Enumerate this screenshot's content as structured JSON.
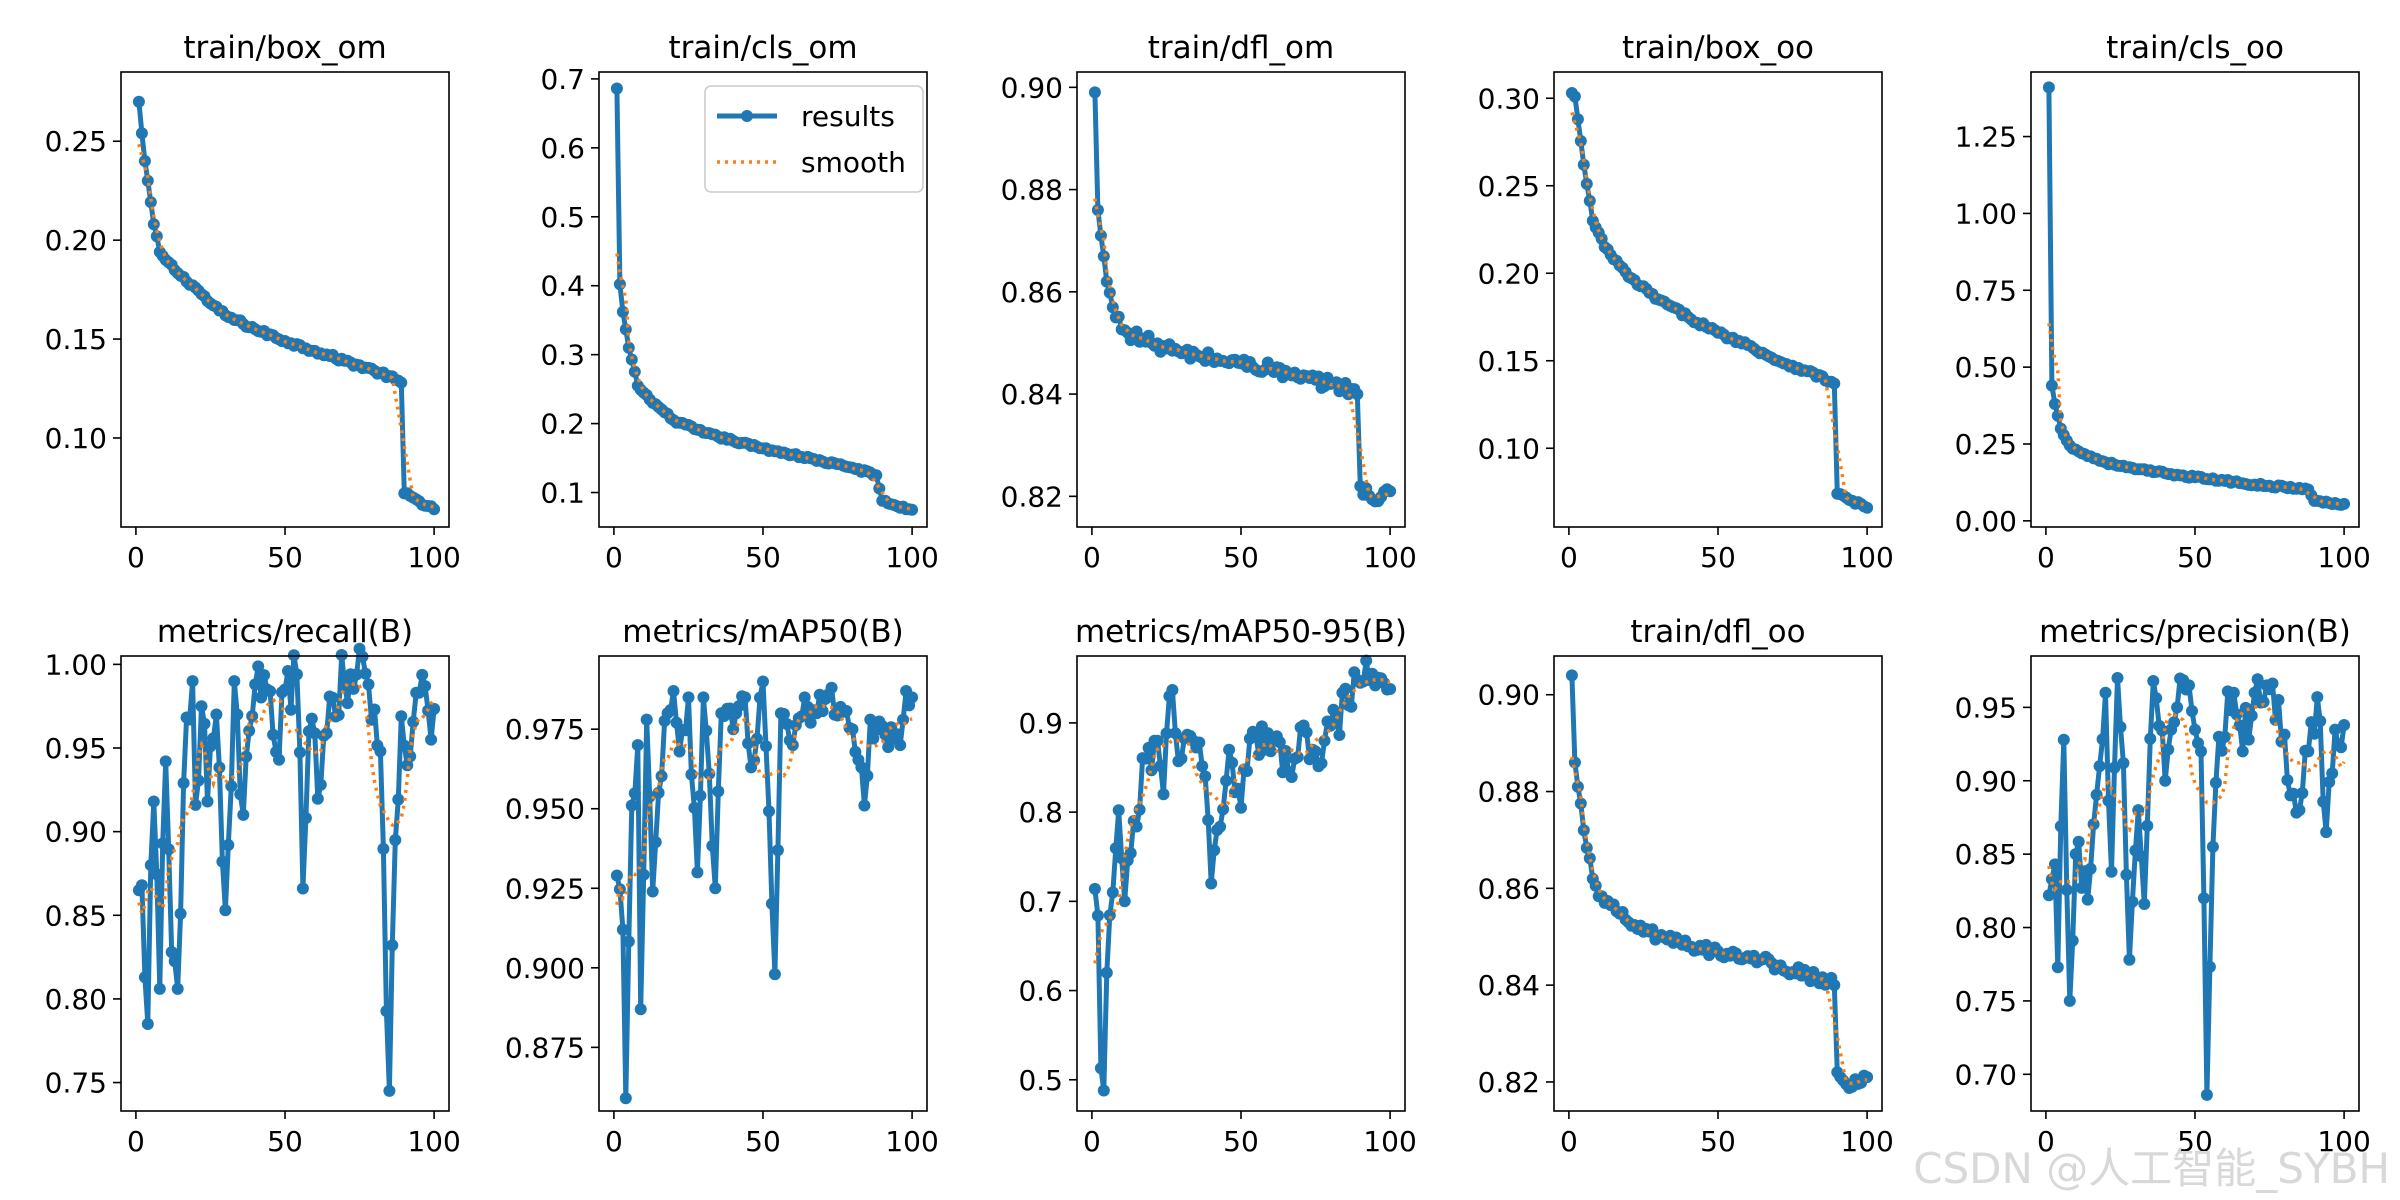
{
  "colors": {
    "results": "#1f77b4",
    "smooth": "#ff7f0e",
    "axis": "#000000"
  },
  "legend": {
    "results_label": "results",
    "smooth_label": "smooth"
  },
  "watermark": "CSDN @人工智能_SYBH",
  "chart_data": [
    {
      "type": "line",
      "title": "train/box_om",
      "xlim": [
        -5,
        105
      ],
      "ylim": [
        0.055,
        0.285
      ],
      "xticks": [
        0,
        50,
        100
      ],
      "yticks": [
        0.1,
        0.15,
        0.2,
        0.25
      ],
      "ytick_labels": [
        "0.10",
        "0.15",
        "0.20",
        "0.25"
      ],
      "anchors": [
        [
          1,
          0.27
        ],
        [
          2,
          0.254
        ],
        [
          3,
          0.24
        ],
        [
          4,
          0.23
        ],
        [
          6,
          0.208
        ],
        [
          8,
          0.194
        ],
        [
          10,
          0.19
        ],
        [
          15,
          0.182
        ],
        [
          20,
          0.176
        ],
        [
          25,
          0.168
        ],
        [
          30,
          0.162
        ],
        [
          40,
          0.155
        ],
        [
          50,
          0.149
        ],
        [
          60,
          0.144
        ],
        [
          70,
          0.139
        ],
        [
          80,
          0.134
        ],
        [
          88,
          0.129
        ],
        [
          89,
          0.128
        ],
        [
          90,
          0.072
        ],
        [
          95,
          0.068
        ],
        [
          100,
          0.064
        ]
      ],
      "jitter": 0.001
    },
    {
      "type": "line",
      "title": "train/cls_om",
      "legend": true,
      "xlim": [
        -5,
        105
      ],
      "ylim": [
        0.05,
        0.71
      ],
      "xticks": [
        0,
        50,
        100
      ],
      "yticks": [
        0.1,
        0.2,
        0.3,
        0.4,
        0.5,
        0.6,
        0.7
      ],
      "ytick_labels": [
        "0.1",
        "0.2",
        "0.3",
        "0.4",
        "0.5",
        "0.6",
        "0.7"
      ],
      "anchors": [
        [
          1,
          0.686
        ],
        [
          2,
          0.402
        ],
        [
          3,
          0.362
        ],
        [
          5,
          0.31
        ],
        [
          8,
          0.255
        ],
        [
          12,
          0.235
        ],
        [
          20,
          0.205
        ],
        [
          30,
          0.187
        ],
        [
          40,
          0.175
        ],
        [
          50,
          0.164
        ],
        [
          60,
          0.155
        ],
        [
          70,
          0.145
        ],
        [
          80,
          0.136
        ],
        [
          88,
          0.125
        ],
        [
          90,
          0.088
        ],
        [
          95,
          0.08
        ],
        [
          100,
          0.075
        ]
      ],
      "jitter": 0.002
    },
    {
      "type": "line",
      "title": "train/dfl_om",
      "xlim": [
        -5,
        105
      ],
      "ylim": [
        0.814,
        0.903
      ],
      "xticks": [
        0,
        50,
        100
      ],
      "yticks": [
        0.82,
        0.84,
        0.86,
        0.88,
        0.9
      ],
      "ytick_labels": [
        "0.82",
        "0.84",
        "0.86",
        "0.88",
        "0.90"
      ],
      "anchors": [
        [
          1,
          0.899
        ],
        [
          2,
          0.876
        ],
        [
          3,
          0.871
        ],
        [
          5,
          0.862
        ],
        [
          8,
          0.855
        ],
        [
          12,
          0.852
        ],
        [
          20,
          0.85
        ],
        [
          30,
          0.848
        ],
        [
          40,
          0.847
        ],
        [
          50,
          0.846
        ],
        [
          60,
          0.845
        ],
        [
          70,
          0.843
        ],
        [
          80,
          0.842
        ],
        [
          87,
          0.841
        ],
        [
          89,
          0.84
        ],
        [
          90,
          0.822
        ],
        [
          95,
          0.819
        ],
        [
          100,
          0.821
        ]
      ],
      "jitter": 0.0012
    },
    {
      "type": "line",
      "title": "train/box_oo",
      "xlim": [
        -5,
        105
      ],
      "ylim": [
        0.055,
        0.315
      ],
      "xticks": [
        0,
        50,
        100
      ],
      "yticks": [
        0.1,
        0.15,
        0.2,
        0.25,
        0.3
      ],
      "ytick_labels": [
        "0.10",
        "0.15",
        "0.20",
        "0.25",
        "0.30"
      ],
      "anchors": [
        [
          1,
          0.303
        ],
        [
          2,
          0.301
        ],
        [
          3,
          0.288
        ],
        [
          5,
          0.262
        ],
        [
          8,
          0.23
        ],
        [
          12,
          0.215
        ],
        [
          20,
          0.198
        ],
        [
          30,
          0.185
        ],
        [
          40,
          0.175
        ],
        [
          50,
          0.166
        ],
        [
          60,
          0.159
        ],
        [
          70,
          0.15
        ],
        [
          80,
          0.144
        ],
        [
          88,
          0.138
        ],
        [
          89,
          0.137
        ],
        [
          90,
          0.074
        ],
        [
          95,
          0.07
        ],
        [
          100,
          0.066
        ]
      ],
      "jitter": 0.0012
    },
    {
      "type": "line",
      "title": "train/cls_oo",
      "xlim": [
        -5,
        105
      ],
      "ylim": [
        -0.02,
        1.46
      ],
      "xticks": [
        0,
        50,
        100
      ],
      "yticks": [
        0.0,
        0.25,
        0.5,
        0.75,
        1.0,
        1.25
      ],
      "ytick_labels": [
        "0.00",
        "0.25",
        "0.50",
        "0.75",
        "1.00",
        "1.25"
      ],
      "anchors": [
        [
          1,
          1.41
        ],
        [
          2,
          0.44
        ],
        [
          3,
          0.38
        ],
        [
          5,
          0.3
        ],
        [
          8,
          0.245
        ],
        [
          12,
          0.22
        ],
        [
          20,
          0.19
        ],
        [
          30,
          0.168
        ],
        [
          40,
          0.155
        ],
        [
          50,
          0.142
        ],
        [
          60,
          0.13
        ],
        [
          70,
          0.118
        ],
        [
          80,
          0.11
        ],
        [
          88,
          0.102
        ],
        [
          90,
          0.065
        ],
        [
          95,
          0.058
        ],
        [
          100,
          0.055
        ]
      ],
      "jitter": 0.004
    },
    {
      "type": "line",
      "title": "metrics/recall(B)",
      "xlim": [
        -5,
        105
      ],
      "ylim": [
        0.733,
        1.005
      ],
      "xticks": [
        0,
        50,
        100
      ],
      "yticks": [
        0.75,
        0.8,
        0.85,
        0.9,
        0.95,
        1.0
      ],
      "ytick_labels": [
        "0.75",
        "0.80",
        "0.85",
        "0.90",
        "0.95",
        "1.00"
      ],
      "anchors": [
        [
          1,
          0.865
        ],
        [
          2,
          0.868
        ],
        [
          3,
          0.813
        ],
        [
          4,
          0.785
        ],
        [
          5,
          0.88
        ],
        [
          6,
          0.918
        ],
        [
          8,
          0.806
        ],
        [
          10,
          0.942
        ],
        [
          12,
          0.828
        ],
        [
          14,
          0.806
        ],
        [
          16,
          0.929
        ],
        [
          19,
          0.99
        ],
        [
          20,
          0.916
        ],
        [
          22,
          0.975
        ],
        [
          24,
          0.918
        ],
        [
          27,
          0.97
        ],
        [
          30,
          0.853
        ],
        [
          33,
          0.99
        ],
        [
          36,
          0.91
        ],
        [
          40,
          0.988
        ],
        [
          44,
          0.985
        ],
        [
          48,
          0.943
        ],
        [
          50,
          0.985
        ],
        [
          54,
          0.994
        ],
        [
          56,
          0.866
        ],
        [
          58,
          0.96
        ],
        [
          62,
          0.928
        ],
        [
          66,
          0.98
        ],
        [
          70,
          0.988
        ],
        [
          74,
          0.994
        ],
        [
          78,
          0.988
        ],
        [
          82,
          0.948
        ],
        [
          85,
          0.745
        ],
        [
          87,
          0.895
        ],
        [
          89,
          0.969
        ],
        [
          92,
          0.945
        ],
        [
          95,
          0.983
        ],
        [
          97,
          0.987
        ],
        [
          99,
          0.955
        ]
      ],
      "jitter": 0.02,
      "smooth_window": 6
    },
    {
      "type": "line",
      "title": "metrics/mAP50(B)",
      "xlim": [
        -5,
        105
      ],
      "ylim": [
        0.855,
        0.998
      ],
      "xticks": [
        0,
        50,
        100
      ],
      "yticks": [
        0.875,
        0.9,
        0.925,
        0.95,
        0.975
      ],
      "ytick_labels": [
        "0.875",
        "0.900",
        "0.925",
        "0.950",
        "0.975"
      ],
      "anchors": [
        [
          1,
          0.929
        ],
        [
          3,
          0.912
        ],
        [
          4,
          0.859
        ],
        [
          6,
          0.951
        ],
        [
          8,
          0.97
        ],
        [
          9,
          0.887
        ],
        [
          11,
          0.978
        ],
        [
          13,
          0.924
        ],
        [
          15,
          0.955
        ],
        [
          18,
          0.98
        ],
        [
          20,
          0.987
        ],
        [
          22,
          0.968
        ],
        [
          25,
          0.985
        ],
        [
          28,
          0.93
        ],
        [
          30,
          0.985
        ],
        [
          34,
          0.925
        ],
        [
          36,
          0.98
        ],
        [
          40,
          0.975
        ],
        [
          44,
          0.985
        ],
        [
          46,
          0.963
        ],
        [
          50,
          0.99
        ],
        [
          54,
          0.898
        ],
        [
          56,
          0.98
        ],
        [
          60,
          0.97
        ],
        [
          64,
          0.985
        ],
        [
          68,
          0.98
        ],
        [
          72,
          0.986
        ],
        [
          76,
          0.982
        ],
        [
          80,
          0.975
        ],
        [
          84,
          0.951
        ],
        [
          86,
          0.978
        ],
        [
          90,
          0.976
        ],
        [
          94,
          0.972
        ],
        [
          96,
          0.97
        ],
        [
          98,
          0.987
        ],
        [
          100,
          0.985
        ]
      ],
      "jitter": 0.006,
      "smooth_window": 6
    },
    {
      "type": "line",
      "title": "metrics/mAP50-95(B)",
      "xlim": [
        -5,
        105
      ],
      "ylim": [
        0.465,
        0.975
      ],
      "xticks": [
        0,
        50,
        100
      ],
      "yticks": [
        0.5,
        0.6,
        0.7,
        0.8,
        0.9
      ],
      "ytick_labels": [
        "0.5",
        "0.6",
        "0.7",
        "0.8",
        "0.9"
      ],
      "anchors": [
        [
          1,
          0.714
        ],
        [
          2,
          0.684
        ],
        [
          3,
          0.513
        ],
        [
          4,
          0.488
        ],
        [
          5,
          0.62
        ],
        [
          7,
          0.71
        ],
        [
          9,
          0.802
        ],
        [
          11,
          0.7
        ],
        [
          14,
          0.79
        ],
        [
          18,
          0.86
        ],
        [
          22,
          0.88
        ],
        [
          24,
          0.82
        ],
        [
          26,
          0.93
        ],
        [
          30,
          0.86
        ],
        [
          34,
          0.88
        ],
        [
          38,
          0.84
        ],
        [
          40,
          0.72
        ],
        [
          42,
          0.78
        ],
        [
          46,
          0.87
        ],
        [
          50,
          0.805
        ],
        [
          54,
          0.89
        ],
        [
          58,
          0.87
        ],
        [
          62,
          0.885
        ],
        [
          66,
          0.845
        ],
        [
          70,
          0.895
        ],
        [
          74,
          0.87
        ],
        [
          78,
          0.88
        ],
        [
          82,
          0.905
        ],
        [
          86,
          0.92
        ],
        [
          90,
          0.945
        ],
        [
          94,
          0.955
        ],
        [
          97,
          0.95
        ],
        [
          100,
          0.938
        ]
      ],
      "jitter": 0.025,
      "smooth_window": 6
    },
    {
      "type": "line",
      "title": "train/dfl_oo",
      "xlim": [
        -5,
        105
      ],
      "ylim": [
        0.814,
        0.908
      ],
      "xticks": [
        0,
        50,
        100
      ],
      "yticks": [
        0.82,
        0.84,
        0.86,
        0.88,
        0.9
      ],
      "ytick_labels": [
        "0.82",
        "0.84",
        "0.86",
        "0.88",
        "0.90"
      ],
      "anchors": [
        [
          1,
          0.904
        ],
        [
          2,
          0.886
        ],
        [
          3,
          0.881
        ],
        [
          5,
          0.872
        ],
        [
          8,
          0.862
        ],
        [
          12,
          0.857
        ],
        [
          20,
          0.853
        ],
        [
          30,
          0.85
        ],
        [
          40,
          0.848
        ],
        [
          50,
          0.847
        ],
        [
          60,
          0.846
        ],
        [
          70,
          0.844
        ],
        [
          80,
          0.842
        ],
        [
          87,
          0.841
        ],
        [
          89,
          0.84
        ],
        [
          90,
          0.822
        ],
        [
          95,
          0.819
        ],
        [
          100,
          0.821
        ]
      ],
      "jitter": 0.0012
    },
    {
      "type": "line",
      "title": "metrics/precision(B)",
      "xlim": [
        -5,
        105
      ],
      "ylim": [
        0.675,
        0.985
      ],
      "xticks": [
        0,
        50,
        100
      ],
      "yticks": [
        0.7,
        0.75,
        0.8,
        0.85,
        0.9,
        0.95
      ],
      "ytick_labels": [
        "0.70",
        "0.75",
        "0.80",
        "0.85",
        "0.90",
        "0.95"
      ],
      "anchors": [
        [
          1,
          0.822
        ],
        [
          2,
          0.833
        ],
        [
          3,
          0.843
        ],
        [
          4,
          0.773
        ],
        [
          6,
          0.928
        ],
        [
          8,
          0.75
        ],
        [
          10,
          0.85
        ],
        [
          12,
          0.827
        ],
        [
          15,
          0.84
        ],
        [
          18,
          0.91
        ],
        [
          20,
          0.96
        ],
        [
          22,
          0.838
        ],
        [
          24,
          0.97
        ],
        [
          26,
          0.912
        ],
        [
          28,
          0.778
        ],
        [
          31,
          0.88
        ],
        [
          33,
          0.816
        ],
        [
          36,
          0.968
        ],
        [
          40,
          0.9
        ],
        [
          44,
          0.95
        ],
        [
          48,
          0.965
        ],
        [
          52,
          0.92
        ],
        [
          54,
          0.686
        ],
        [
          56,
          0.855
        ],
        [
          58,
          0.93
        ],
        [
          62,
          0.948
        ],
        [
          66,
          0.92
        ],
        [
          70,
          0.96
        ],
        [
          74,
          0.965
        ],
        [
          78,
          0.955
        ],
        [
          82,
          0.89
        ],
        [
          85,
          0.88
        ],
        [
          88,
          0.92
        ],
        [
          91,
          0.957
        ],
        [
          94,
          0.865
        ],
        [
          96,
          0.905
        ],
        [
          98,
          0.925
        ],
        [
          100,
          0.938
        ]
      ],
      "jitter": 0.02,
      "smooth_window": 6
    }
  ]
}
